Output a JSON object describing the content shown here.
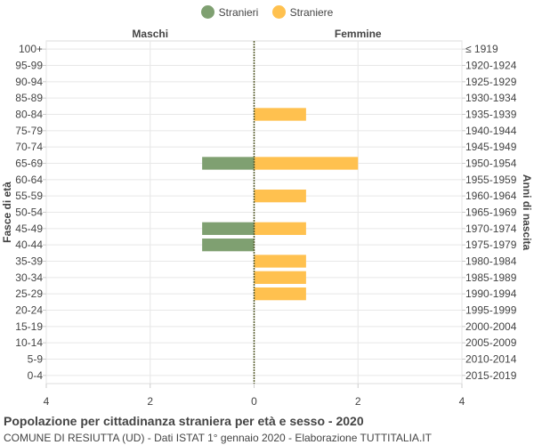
{
  "legend": {
    "items": [
      {
        "label": "Stranieri",
        "color": "#7fa071"
      },
      {
        "label": "Straniere",
        "color": "#ffc14f"
      }
    ]
  },
  "chart_data": {
    "type": "bar",
    "orientation": "horizontal-population-pyramid",
    "left_header": "Maschi",
    "right_header": "Femmine",
    "ylabel_left": "Fasce di età",
    "ylabel_right": "Anni di nascita",
    "categories": [
      "100+",
      "95-99",
      "90-94",
      "85-89",
      "80-84",
      "75-79",
      "70-74",
      "65-69",
      "60-64",
      "55-59",
      "50-54",
      "45-49",
      "40-44",
      "35-39",
      "30-34",
      "25-29",
      "20-24",
      "15-19",
      "10-14",
      "5-9",
      "0-4"
    ],
    "birth_years": [
      "≤ 1919",
      "1920-1924",
      "1925-1929",
      "1930-1934",
      "1935-1939",
      "1940-1944",
      "1945-1949",
      "1950-1954",
      "1955-1959",
      "1960-1964",
      "1965-1969",
      "1970-1974",
      "1975-1979",
      "1980-1984",
      "1985-1989",
      "1990-1994",
      "1995-1999",
      "2000-2004",
      "2005-2009",
      "2010-2014",
      "2015-2019"
    ],
    "series": [
      {
        "name": "Stranieri",
        "color": "#7fa071",
        "values": [
          0,
          0,
          0,
          0,
          0,
          0,
          0,
          1,
          0,
          0,
          0,
          1,
          1,
          0,
          0,
          0,
          0,
          0,
          0,
          0,
          0
        ]
      },
      {
        "name": "Straniere",
        "color": "#ffc14f",
        "values": [
          0,
          0,
          0,
          0,
          1,
          0,
          0,
          2,
          0,
          1,
          0,
          1,
          0,
          1,
          1,
          1,
          0,
          0,
          0,
          0,
          0
        ]
      }
    ],
    "xlim": [
      -4,
      4
    ],
    "xticks": [
      "4",
      "2",
      "0",
      "2",
      "4"
    ],
    "grid": true,
    "legend_position": "top-center"
  },
  "footer": {
    "title": "Popolazione per cittadinanza straniera per età e sesso - 2020",
    "subtitle": "COMUNE DI RESIUTTA (UD) - Dati ISTAT 1° gennaio 2020 - Elaborazione TUTTITALIA.IT"
  }
}
